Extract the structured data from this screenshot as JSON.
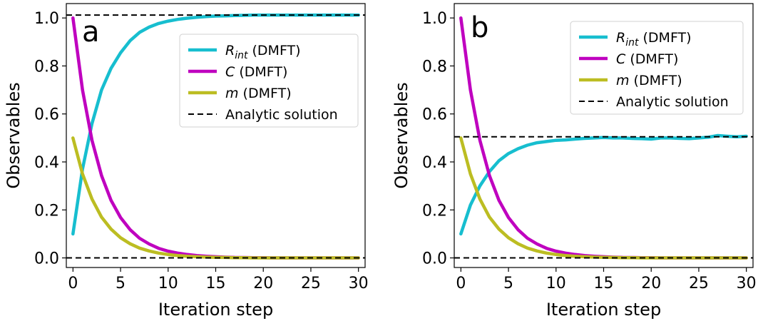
{
  "chart_data": [
    {
      "type": "line",
      "panel_label": "a",
      "xlabel": "Iteration step",
      "ylabel": "Observables",
      "xlim": [
        -0.7,
        30.7
      ],
      "ylim": [
        -0.04,
        1.06
      ],
      "xticks": [
        0,
        5,
        10,
        15,
        20,
        25,
        30
      ],
      "yticks": [
        0.0,
        0.2,
        0.4,
        0.6,
        0.8,
        1.0
      ],
      "legend_position": "upper-right",
      "series": [
        {
          "name": "R",
          "name_sub": "int",
          "name_suffix": " (DMFT)",
          "color": "#17becf",
          "style": "solid",
          "x": [
            0,
            1,
            2,
            3,
            4,
            5,
            6,
            7,
            8,
            9,
            10,
            11,
            12,
            13,
            14,
            15,
            16,
            17,
            18,
            19,
            20,
            21,
            22,
            23,
            24,
            25,
            26,
            27,
            28,
            29,
            30
          ],
          "y": [
            0.1,
            0.37,
            0.56,
            0.7,
            0.79,
            0.855,
            0.905,
            0.94,
            0.962,
            0.977,
            0.987,
            0.994,
            0.999,
            1.003,
            1.006,
            1.008,
            1.009,
            1.01,
            1.011,
            1.012,
            1.012,
            1.012,
            1.012,
            1.012,
            1.012,
            1.012,
            1.012,
            1.012,
            1.012,
            1.012,
            1.012
          ]
        },
        {
          "name": "C",
          "name_suffix": " (DMFT)",
          "color": "#bf00bf",
          "style": "solid",
          "x": [
            0,
            1,
            2,
            3,
            4,
            5,
            6,
            7,
            8,
            9,
            10,
            11,
            12,
            13,
            14,
            15,
            16,
            17,
            18,
            19,
            20,
            21,
            22,
            23,
            24,
            25,
            26,
            27,
            28,
            29,
            30
          ],
          "y": [
            1.0,
            0.7,
            0.49,
            0.343,
            0.24,
            0.168,
            0.118,
            0.082,
            0.058,
            0.04,
            0.028,
            0.02,
            0.014,
            0.01,
            0.007,
            0.005,
            0.003,
            0.002,
            0.0015,
            0.001,
            0.001,
            0,
            0,
            0,
            0,
            0,
            0,
            0,
            0,
            0,
            0
          ]
        },
        {
          "name": "m",
          "name_suffix": " (DMFT)",
          "color": "#bcbd22",
          "style": "solid",
          "x": [
            0,
            1,
            2,
            3,
            4,
            5,
            6,
            7,
            8,
            9,
            10,
            11,
            12,
            13,
            14,
            15,
            16,
            17,
            18,
            19,
            20,
            21,
            22,
            23,
            24,
            25,
            26,
            27,
            28,
            29,
            30
          ],
          "y": [
            0.5,
            0.35,
            0.245,
            0.17,
            0.12,
            0.084,
            0.059,
            0.041,
            0.029,
            0.02,
            0.014,
            0.01,
            0.007,
            0.005,
            0.0035,
            0.0025,
            0.002,
            0.001,
            0.001,
            0,
            0,
            0,
            0,
            0,
            0,
            0,
            0,
            0,
            0,
            0,
            0
          ]
        },
        {
          "name": "Analytic solution",
          "color": "#000000",
          "style": "dashed",
          "x": [
            -0.7,
            30.7
          ],
          "y": [
            1.012,
            1.012
          ]
        },
        {
          "name": "",
          "color": "#000000",
          "style": "dashed",
          "x": [
            -0.7,
            30.7
          ],
          "y": [
            0.0,
            0.0
          ]
        }
      ]
    },
    {
      "type": "line",
      "panel_label": "b",
      "xlabel": "Iteration step",
      "ylabel": "Observables",
      "xlim": [
        -0.7,
        30.7
      ],
      "ylim": [
        -0.04,
        1.06
      ],
      "xticks": [
        0,
        5,
        10,
        15,
        20,
        25,
        30
      ],
      "yticks": [
        0.0,
        0.2,
        0.4,
        0.6,
        0.8,
        1.0
      ],
      "legend_position": "upper-right",
      "series": [
        {
          "name": "R",
          "name_sub": "int",
          "name_suffix": " (DMFT)",
          "color": "#17becf",
          "style": "solid",
          "x": [
            0,
            1,
            2,
            3,
            4,
            5,
            6,
            7,
            8,
            9,
            10,
            11,
            12,
            13,
            14,
            15,
            16,
            17,
            18,
            19,
            20,
            21,
            22,
            23,
            24,
            25,
            26,
            27,
            28,
            29,
            30
          ],
          "y": [
            0.1,
            0.22,
            0.3,
            0.36,
            0.405,
            0.435,
            0.455,
            0.47,
            0.48,
            0.485,
            0.49,
            0.492,
            0.495,
            0.498,
            0.5,
            0.502,
            0.5,
            0.5,
            0.498,
            0.497,
            0.495,
            0.5,
            0.5,
            0.498,
            0.497,
            0.5,
            0.503,
            0.51,
            0.507,
            0.505,
            0.507
          ]
        },
        {
          "name": "C",
          "name_suffix": " (DMFT)",
          "color": "#bf00bf",
          "style": "solid",
          "x": [
            0,
            1,
            2,
            3,
            4,
            5,
            6,
            7,
            8,
            9,
            10,
            11,
            12,
            13,
            14,
            15,
            16,
            17,
            18,
            19,
            20,
            21,
            22,
            23,
            24,
            25,
            26,
            27,
            28,
            29,
            30
          ],
          "y": [
            1.0,
            0.7,
            0.49,
            0.343,
            0.24,
            0.168,
            0.118,
            0.082,
            0.058,
            0.04,
            0.028,
            0.02,
            0.014,
            0.01,
            0.007,
            0.005,
            0.003,
            0.002,
            0.0015,
            0.001,
            0.001,
            0,
            0,
            0,
            0,
            0,
            0,
            0,
            0,
            0,
            0
          ]
        },
        {
          "name": "m",
          "name_suffix": " (DMFT)",
          "color": "#bcbd22",
          "style": "solid",
          "x": [
            0,
            1,
            2,
            3,
            4,
            5,
            6,
            7,
            8,
            9,
            10,
            11,
            12,
            13,
            14,
            15,
            16,
            17,
            18,
            19,
            20,
            21,
            22,
            23,
            24,
            25,
            26,
            27,
            28,
            29,
            30
          ],
          "y": [
            0.5,
            0.35,
            0.245,
            0.17,
            0.12,
            0.084,
            0.059,
            0.041,
            0.029,
            0.02,
            0.014,
            0.01,
            0.007,
            0.005,
            0.0035,
            0.0025,
            0.002,
            0.001,
            0.001,
            0,
            0,
            0,
            0,
            0,
            0,
            0,
            0,
            0,
            0,
            0,
            0
          ]
        },
        {
          "name": "Analytic solution",
          "color": "#000000",
          "style": "dashed",
          "x": [
            -0.7,
            30.7
          ],
          "y": [
            0.505,
            0.505
          ]
        },
        {
          "name": "",
          "color": "#000000",
          "style": "dashed",
          "x": [
            -0.7,
            30.7
          ],
          "y": [
            0.0,
            0.0
          ]
        }
      ]
    }
  ]
}
